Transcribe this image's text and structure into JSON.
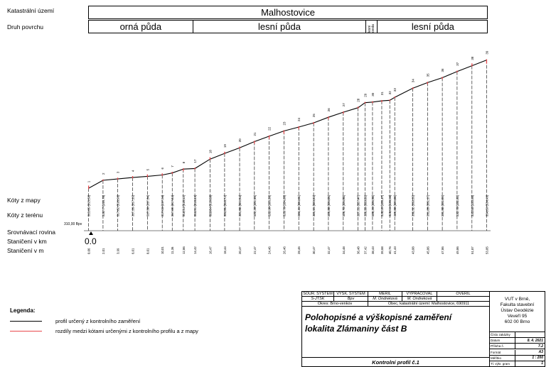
{
  "header": {
    "row1_label": "Katastrální území",
    "row2_label": "Druh povrchu",
    "territory": "Malhostovice",
    "surfaces": [
      {
        "label": "orná půda",
        "from": 0.0,
        "to": 14.0
      },
      {
        "label": "lesní půda",
        "from": 14.0,
        "to": 37.4
      },
      {
        "label": "lesní cesta",
        "from": 37.4,
        "to": 38.9
      },
      {
        "label": "lesní půda",
        "from": 38.9,
        "to": 54.0
      }
    ]
  },
  "row_labels": {
    "map": "Kóty z mapy",
    "terrain": "Kóty z terénu",
    "datum": "Srovnávací rovina",
    "km": "Staničení v km",
    "m": "Staničení v m"
  },
  "datum_value": "310,00 Bpv",
  "km_value": "0.0",
  "chart_data": {
    "type": "line",
    "title": "",
    "xlabel": "Staničení v m",
    "ylabel": "",
    "xlim": [
      0,
      54.0
    ],
    "ylim": [
      315.5,
      335.5
    ],
    "series": [
      {
        "name": "profil určený z kontrolního zaměření",
        "points": [
          {
            "n": "1",
            "x": 0.06,
            "map": "315,85",
            "terrain": "315,58"
          },
          {
            "n": "2",
            "x": 2.01,
            "map": "316,77",
            "terrain": "316,76"
          },
          {
            "n": "3",
            "x": 3.99,
            "map": "317,02",
            "terrain": "316,96"
          },
          {
            "n": "4",
            "x": 6.01,
            "map": "317,26",
            "terrain": "317,16"
          },
          {
            "n": "5",
            "x": 8.01,
            "map": "317,50",
            "terrain": "317,34"
          },
          {
            "n": "6",
            "x": 10.01,
            "map": "317,66",
            "terrain": "317,54"
          },
          {
            "n": "7",
            "x": 11.36,
            "map": "317,89",
            "terrain": "317,84"
          },
          {
            "n": "8",
            "x": 12.86,
            "map": "318,24",
            "terrain": "318,41"
          },
          {
            "n": "17",
            "x": 14.42,
            "map": "318,51",
            "terrain": "318,49"
          },
          {
            "n": "18",
            "x": 16.47,
            "map": "320,04",
            "terrain": "319,88"
          },
          {
            "n": "19",
            "x": 18.44,
            "map": "320,85",
            "terrain": "320,72"
          },
          {
            "n": "20",
            "x": 20.47,
            "map": "321,60",
            "terrain": "321,54"
          },
          {
            "n": "21",
            "x": 22.47,
            "map": "322,28",
            "terrain": "322,46"
          },
          {
            "n": "22",
            "x": 24.46,
            "map": "322,98",
            "terrain": "323,26"
          },
          {
            "n": "23",
            "x": 26.46,
            "map": "323,76",
            "terrain": "324,03"
          },
          {
            "n": "24",
            "x": 28.46,
            "map": "324,41",
            "terrain": "324,61"
          },
          {
            "n": "25",
            "x": 30.47,
            "map": "325,15",
            "terrain": "325,23"
          },
          {
            "n": "26",
            "x": 32.47,
            "map": "325,88",
            "terrain": "326,05"
          },
          {
            "n": "27",
            "x": 34.48,
            "map": "326,70",
            "terrain": "326,80"
          },
          {
            "n": "28",
            "x": 36.48,
            "map": "327,51",
            "terrain": "327,47"
          },
          {
            "n": "29",
            "x": 37.42,
            "map": "328,20",
            "terrain": "328,20"
          },
          {
            "n": "30",
            "x": 38.43,
            "map": "328,26",
            "terrain": "328,30"
          },
          {
            "n": "31",
            "x": 39.68,
            "map": "328,39",
            "terrain": "328,47"
          },
          {
            "n": "32",
            "x": 40.76,
            "map": "328,56",
            "terrain": "328,56"
          },
          {
            "n": "33",
            "x": 41.43,
            "map": "329,00",
            "terrain": "329,00"
          },
          {
            "n": "34",
            "x": 43.88,
            "map": "330,32",
            "terrain": "330,35"
          },
          {
            "n": "35",
            "x": 45.86,
            "map": "331,05",
            "terrain": "331,17"
          },
          {
            "n": "36",
            "x": 47.86,
            "map": "331,80",
            "terrain": "331,89"
          },
          {
            "n": "37",
            "x": 49.86,
            "map": "332,78",
            "terrain": "332,81"
          },
          {
            "n": "38",
            "x": 51.87,
            "map": "333,88",
            "terrain": "333,66"
          },
          {
            "n": "39",
            "x": 53.85,
            "map": "334,09",
            "terrain": "334,49"
          }
        ],
        "x_labels": [
          "0,06",
          "2,01",
          "3,99",
          "6,01",
          "8,01",
          "10,01",
          "11,36",
          "12,86",
          "14,42",
          "16,47",
          "18,44",
          "20,47",
          "22,47",
          "24,46",
          "26,46",
          "28,46",
          "30,47",
          "32,47",
          "34,48",
          "36,48",
          "37,42",
          "38,43",
          "39,68",
          "40,76",
          "41,43",
          "43,88",
          "45,86",
          "47,86",
          "49,86",
          "51,87",
          "53,85"
        ]
      }
    ],
    "colors": {
      "profile": "#000000",
      "diff": "#e8474b"
    }
  },
  "legend": {
    "title": "Legenda:",
    "items": [
      {
        "label": "profil určený z kontrolního zaměření",
        "color": "#000000"
      },
      {
        "label": "rozdíly medzi kótami určenými z kontrolního profilu a z mapy",
        "color": "#e8474b"
      }
    ]
  },
  "titleblock": {
    "headers": [
      "SOUŘ. SYSTÉM",
      "VÝŠK. SYSTÉM",
      "MĚŘIL",
      "VYPRACOVAL",
      "OVĚŘIL"
    ],
    "values": [
      "S-JTSK",
      "Bpv",
      "M. Ondreková",
      "M. Ondreková",
      ""
    ],
    "okres": "Okres: Brno-venkov",
    "obec": "Obec, katastrální území: Malhostovice, 690911",
    "title1": "Polohopisné a výškopisné zaměření",
    "title2": "lokalita Zlámaniny část B",
    "subtitle": "Kontrolní profil č.1",
    "institution": [
      "VUT v Brně,",
      "Fakulta stavební",
      "Ústav Geodézie",
      "Veveří 95",
      "602 00 Brno"
    ],
    "meta": [
      {
        "k": "Číslo zakázky",
        "v": ""
      },
      {
        "k": "Datum",
        "v": "8. 4. 2021"
      },
      {
        "k": "Příloha č.",
        "v": "7.2"
      },
      {
        "k": "Formát",
        "v": "A3"
      },
      {
        "k": "Měřítko",
        "v": "1 : 200"
      },
      {
        "k": "Tl. výkr. gram",
        "v": "1"
      }
    ]
  }
}
